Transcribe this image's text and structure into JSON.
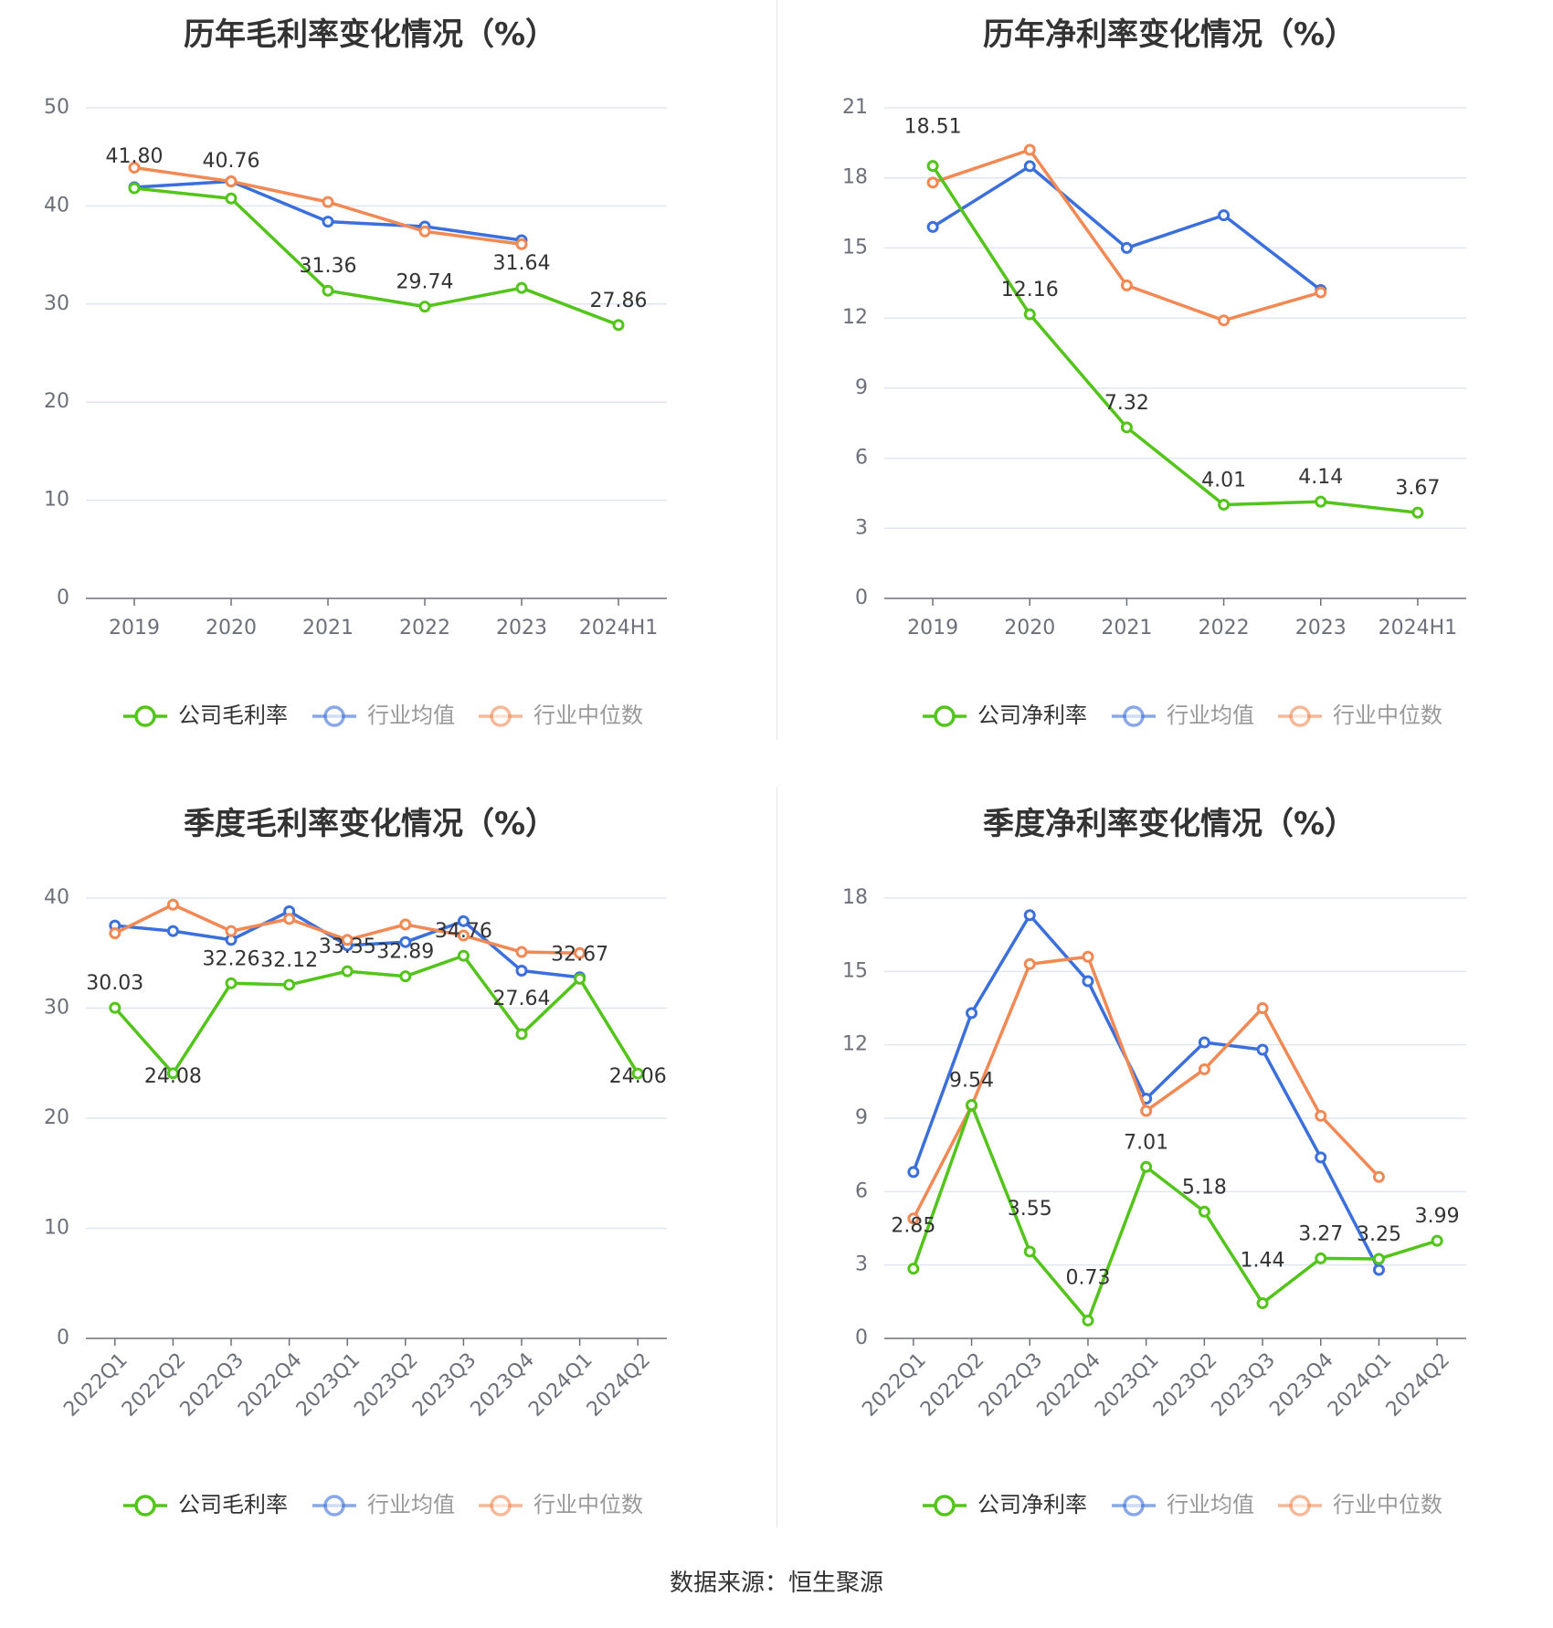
{
  "footer": {
    "source": "数据来源：恒生聚源"
  },
  "chart_data": [
    {
      "type": "line",
      "title": "历年毛利率变化情况（%）",
      "categories": [
        "2019",
        "2020",
        "2021",
        "2022",
        "2023",
        "2024H1"
      ],
      "ylim": [
        0,
        50
      ],
      "yticks": [
        0,
        10,
        20,
        30,
        40,
        50
      ],
      "grid": true,
      "legend_position": "bottom",
      "series": [
        {
          "name": "公司毛利率",
          "color": "#52c41a",
          "labels": true,
          "values": [
            41.8,
            40.76,
            31.36,
            29.74,
            31.64,
            27.86
          ]
        },
        {
          "name": "行业均值",
          "color": "#3b6fdc",
          "labels": false,
          "values": [
            41.9,
            42.5,
            38.4,
            37.9,
            36.5,
            null
          ]
        },
        {
          "name": "行业中位数",
          "color": "#f28955",
          "labels": false,
          "values": [
            43.9,
            42.5,
            40.4,
            37.4,
            36.1,
            null
          ]
        }
      ]
    },
    {
      "type": "line",
      "title": "历年净利率变化情况（%）",
      "categories": [
        "2019",
        "2020",
        "2021",
        "2022",
        "2023",
        "2024H1"
      ],
      "ylim": [
        0,
        21
      ],
      "yticks": [
        0,
        3,
        6,
        9,
        12,
        15,
        18,
        21
      ],
      "grid": true,
      "legend_position": "bottom",
      "series": [
        {
          "name": "公司净利率",
          "color": "#52c41a",
          "labels": true,
          "values": [
            18.51,
            12.16,
            7.32,
            4.01,
            4.14,
            3.67
          ]
        },
        {
          "name": "行业均值",
          "color": "#3b6fdc",
          "labels": false,
          "values": [
            15.9,
            18.5,
            15.0,
            16.4,
            13.2,
            null
          ]
        },
        {
          "name": "行业中位数",
          "color": "#f28955",
          "labels": false,
          "values": [
            17.8,
            19.2,
            13.4,
            11.9,
            13.1,
            null
          ]
        }
      ]
    },
    {
      "type": "line",
      "title": "季度毛利率变化情况（%）",
      "categories": [
        "2022Q1",
        "2022Q2",
        "2022Q3",
        "2022Q4",
        "2023Q1",
        "2023Q2",
        "2023Q3",
        "2023Q4",
        "2024Q1",
        "2024Q2"
      ],
      "ylim": [
        0,
        40
      ],
      "yticks": [
        0,
        10,
        20,
        30,
        40
      ],
      "grid": true,
      "legend_position": "bottom",
      "series": [
        {
          "name": "公司毛利率",
          "color": "#52c41a",
          "labels": true,
          "values": [
            30.03,
            24.08,
            32.26,
            32.12,
            33.35,
            32.89,
            34.76,
            27.64,
            32.67,
            24.06
          ]
        },
        {
          "name": "行业均值",
          "color": "#3b6fdc",
          "labels": false,
          "values": [
            37.5,
            37.0,
            36.2,
            38.8,
            35.7,
            36.0,
            37.9,
            33.4,
            32.8,
            null
          ]
        },
        {
          "name": "行业中位数",
          "color": "#f28955",
          "labels": false,
          "values": [
            36.8,
            39.4,
            37.0,
            38.1,
            36.2,
            37.6,
            36.6,
            35.1,
            35.0,
            null
          ]
        }
      ]
    },
    {
      "type": "line",
      "title": "季度净利率变化情况（%）",
      "categories": [
        "2022Q1",
        "2022Q2",
        "2022Q3",
        "2022Q4",
        "2023Q1",
        "2023Q2",
        "2023Q3",
        "2023Q4",
        "2024Q1",
        "2024Q2"
      ],
      "ylim": [
        0,
        18
      ],
      "yticks": [
        0,
        3,
        6,
        9,
        12,
        15,
        18
      ],
      "grid": true,
      "legend_position": "bottom",
      "series": [
        {
          "name": "公司净利率",
          "color": "#52c41a",
          "labels": true,
          "values": [
            2.85,
            9.54,
            3.55,
            0.73,
            7.01,
            5.18,
            1.44,
            3.27,
            3.25,
            3.99
          ]
        },
        {
          "name": "行业均值",
          "color": "#3b6fdc",
          "labels": false,
          "values": [
            6.8,
            13.3,
            17.3,
            14.6,
            9.8,
            12.1,
            11.8,
            7.4,
            2.8,
            null
          ]
        },
        {
          "name": "行业中位数",
          "color": "#f28955",
          "labels": false,
          "values": [
            4.9,
            9.5,
            15.3,
            15.6,
            9.3,
            11.0,
            13.5,
            9.1,
            6.6,
            null
          ]
        }
      ]
    }
  ]
}
